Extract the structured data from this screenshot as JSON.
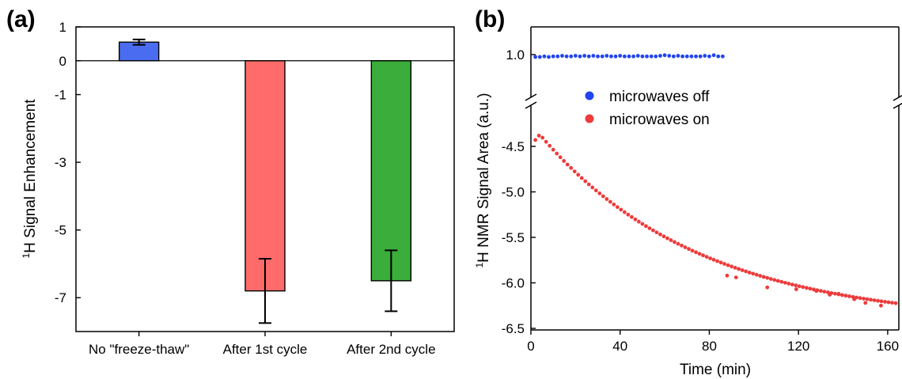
{
  "chart_data": [
    {
      "panel": "(a)",
      "type": "bar",
      "title": "",
      "xlabel": "",
      "ylabel": "Signal Enhancement",
      "ylabel_prefix": "H",
      "ylabel_superscript": "1",
      "categories": [
        "No \"freeze-thaw\"",
        "After 1st cycle",
        "After 2nd cycle"
      ],
      "values": [
        0.55,
        -6.8,
        -6.5
      ],
      "errors": [
        0.08,
        0.95,
        0.9
      ],
      "colors": [
        "#4a6cf0",
        "#ff6b6b",
        "#3aad3a"
      ],
      "ylim": [
        -8,
        1
      ],
      "yticks": [
        "1",
        "0",
        "-1",
        "-3",
        "-5",
        "-7"
      ],
      "ytick_values": [
        1,
        0,
        -1,
        -3,
        -5,
        -7
      ],
      "zero_line": true,
      "grid": false
    },
    {
      "panel": "(b)",
      "type": "scatter",
      "title": "",
      "xlabel": "Time (min)",
      "ylabel": "NMR Signal Area (a.u.)",
      "ylabel_prefix": "H",
      "ylabel_superscript": "1",
      "xlim": [
        0,
        165
      ],
      "xticks": [
        "0",
        "40",
        "80",
        "120",
        "160"
      ],
      "xtick_values": [
        0,
        40,
        80,
        120,
        160
      ],
      "ylim_upper": [
        0.85,
        1.15
      ],
      "yticks_upper": [
        "1.0"
      ],
      "ytick_values_upper": [
        1.0
      ],
      "ylim_lower": [
        -6.5,
        -4.2
      ],
      "yticks_lower": [
        "-4.5",
        "-5.0",
        "-5.5",
        "-6.0",
        "-6.5"
      ],
      "ytick_values_lower": [
        -4.5,
        -5.0,
        -5.5,
        -6.0,
        -6.5
      ],
      "axis_break": true,
      "legend_position": "upper-center",
      "grid": false,
      "series": [
        {
          "name": "microwaves off",
          "color": "#2244ee",
          "x_start": 2,
          "x_end": 86,
          "x_step": 2,
          "y_values": [
            0.98,
            0.98,
            0.985,
            0.98,
            0.985,
            0.985,
            0.99,
            0.985,
            0.985,
            0.99,
            0.985,
            0.99,
            0.985,
            0.99,
            0.985,
            0.985,
            0.99,
            0.985,
            0.985,
            0.99,
            0.985,
            0.985,
            0.985,
            0.99,
            0.985,
            0.985,
            0.985,
            0.985,
            0.99,
            0.995,
            0.99,
            0.985,
            0.99,
            0.985,
            0.985,
            0.985,
            0.985,
            0.985,
            0.99,
            0.985,
            0.995,
            0.985,
            0.985
          ]
        },
        {
          "name": "microwaves on",
          "color": "#ee3b3b",
          "x_start": 2,
          "x_end": 164,
          "x_step": 1.6,
          "y_model": {
            "a": -4.37,
            "b": -6.45,
            "tau": 72.0,
            "t0": 4.0
          },
          "scatter_outliers": [
            [
              88,
              -5.92
            ],
            [
              92,
              -5.94
            ],
            [
              106,
              -6.05
            ],
            [
              119,
              -6.07
            ],
            [
              128,
              -6.09
            ],
            [
              134,
              -6.13
            ],
            [
              138,
              -6.12
            ],
            [
              145,
              -6.18
            ],
            [
              150,
              -6.22
            ],
            [
              157,
              -6.25
            ]
          ]
        }
      ]
    }
  ]
}
